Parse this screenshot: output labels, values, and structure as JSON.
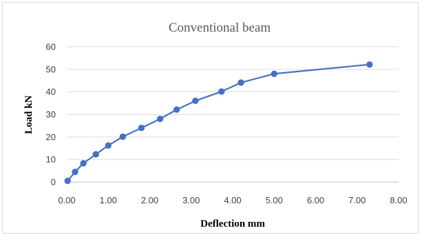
{
  "chart_data": {
    "type": "line",
    "title": "Conventional beam",
    "xlabel": "Deflection mm",
    "ylabel": "Load  kN",
    "xlim": [
      0,
      8
    ],
    "ylim": [
      0,
      60
    ],
    "x_ticks": [
      "0.00",
      "1.00",
      "2.00",
      "3.00",
      "4.00",
      "5.00",
      "6.00",
      "7.00",
      "8.00"
    ],
    "y_ticks": [
      "0",
      "10",
      "20",
      "30",
      "40",
      "50",
      "60"
    ],
    "grid": "horizontal",
    "legend": "none",
    "series": [
      {
        "color": "#4472c4",
        "marker": "circle",
        "points": [
          {
            "x": 0.02,
            "y": 0.5
          },
          {
            "x": 0.2,
            "y": 4.5
          },
          {
            "x": 0.4,
            "y": 8.3
          },
          {
            "x": 0.7,
            "y": 12.3
          },
          {
            "x": 1.0,
            "y": 16.2
          },
          {
            "x": 1.35,
            "y": 20.1
          },
          {
            "x": 1.8,
            "y": 24.0
          },
          {
            "x": 2.25,
            "y": 28.0
          },
          {
            "x": 2.65,
            "y": 32.1
          },
          {
            "x": 3.1,
            "y": 36.0
          },
          {
            "x": 3.73,
            "y": 40.1
          },
          {
            "x": 4.2,
            "y": 44.1
          },
          {
            "x": 5.0,
            "y": 48.0
          },
          {
            "x": 7.3,
            "y": 52.1
          }
        ]
      }
    ]
  }
}
